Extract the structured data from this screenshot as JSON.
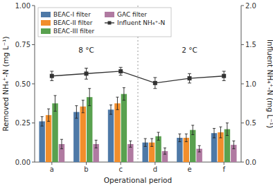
{
  "chart_data": {
    "type": "bar",
    "categories": [
      "a",
      "b",
      "c",
      "d",
      "e",
      "f"
    ],
    "xlabel": "Operational period",
    "ylabel": "Removed NH₄⁺-N (mg L⁻¹)",
    "y2label": "Influent NH₄⁺-N (mg L⁻¹)",
    "ylim": [
      0.0,
      1.0
    ],
    "yticks": [
      {
        "value": 0.0,
        "label": "0.00"
      },
      0.25,
      {
        "value": 0.5,
        "label": "0.50"
      },
      0.75,
      {
        "value": 1.0,
        "label": "1.00"
      }
    ],
    "y2lim": [
      0.0,
      2.0
    ],
    "y2ticks": [
      {
        "value": 0.0,
        "label": "0.0"
      },
      0.5,
      {
        "value": 1.0,
        "label": "1.0"
      },
      1.5,
      {
        "value": 2.0,
        "label": "2.0"
      }
    ],
    "grid": false,
    "legend": "upper left",
    "annotations": [
      {
        "text": "8 °C"
      },
      {
        "text": "2 °C"
      }
    ],
    "series": [
      {
        "name": "BEAC-I filter",
        "color": "#4e79a7",
        "values": [
          0.26,
          0.32,
          0.335,
          0.125,
          0.155,
          0.185
        ],
        "errors": [
          0.03,
          0.04,
          0.03,
          0.025,
          0.025,
          0.03
        ]
      },
      {
        "name": "BEAC-II filter",
        "color": "#f28e2b",
        "values": [
          0.3,
          0.355,
          0.375,
          0.125,
          0.155,
          0.19
        ],
        "errors": [
          0.04,
          0.04,
          0.04,
          0.025,
          0.025,
          0.035
        ]
      },
      {
        "name": "BEAC-III filter",
        "color": "#59a14f",
        "values": [
          0.375,
          0.415,
          0.435,
          0.165,
          0.205,
          0.21
        ],
        "errors": [
          0.05,
          0.055,
          0.04,
          0.025,
          0.03,
          0.04
        ]
      },
      {
        "name": "GAC filter",
        "color": "#b07aa1",
        "values": [
          0.115,
          0.115,
          0.115,
          0.07,
          0.085,
          0.11
        ],
        "errors": [
          0.03,
          0.025,
          0.02,
          0.02,
          0.02,
          0.025
        ]
      },
      {
        "name": "Influent NH₄⁺-N",
        "type": "line",
        "axis": "y2",
        "marker": "square",
        "color": "#333333",
        "values": [
          1.1,
          1.13,
          1.16,
          1.01,
          1.07,
          1.1
        ],
        "errors": [
          0.06,
          0.07,
          0.05,
          0.07,
          0.06,
          0.06
        ]
      }
    ]
  }
}
